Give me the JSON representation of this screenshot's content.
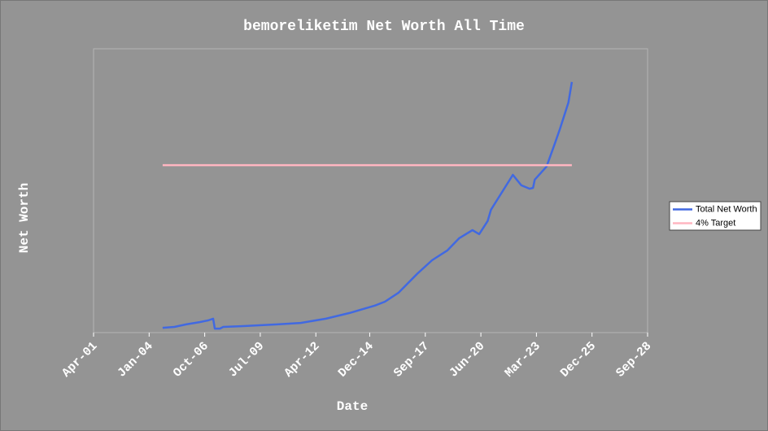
{
  "chart_data": {
    "type": "line",
    "title": "bemoreliketim Net Worth All Time",
    "xlabel": "Date",
    "ylabel": "Net Worth",
    "xlim": [
      "2001-04",
      "2028-09"
    ],
    "xticks": [
      {
        "value": "2001-04",
        "label": "Apr-01"
      },
      {
        "value": "2004-01",
        "label": "Jan-04"
      },
      {
        "value": "2006-10",
        "label": "Oct-06"
      },
      {
        "value": "2009-07",
        "label": "Jul-09"
      },
      {
        "value": "2012-04",
        "label": "Apr-12"
      },
      {
        "value": "2014-12",
        "label": "Dec-14"
      },
      {
        "value": "2017-09",
        "label": "Sep-17"
      },
      {
        "value": "2020-06",
        "label": "Jun-20"
      },
      {
        "value": "2023-03",
        "label": "Mar-23"
      },
      {
        "value": "2025-12",
        "label": "Dec-25"
      },
      {
        "value": "2028-09",
        "label": "Sep-28"
      }
    ],
    "ylim": [
      0,
      100
    ],
    "legend": "right",
    "series": [
      {
        "name": "Total Net Worth",
        "color": "#4169e1",
        "x": [
          "2004-09",
          "2005-04",
          "2005-11",
          "2006-07",
          "2006-12",
          "2007-03",
          "2007-04",
          "2007-07",
          "2007-09",
          "2008-09",
          "2010-05",
          "2011-07",
          "2012-10",
          "2013-12",
          "2015-03",
          "2015-09",
          "2016-05",
          "2017-04",
          "2018-01",
          "2018-10",
          "2019-05",
          "2020-01",
          "2020-05",
          "2020-10",
          "2020-12",
          "2022-01",
          "2022-06",
          "2022-11",
          "2023-01",
          "2023-02",
          "2023-09",
          "2024-02",
          "2024-05",
          "2024-10",
          "2024-12"
        ],
        "values": [
          1.7,
          2.0,
          2.9,
          3.7,
          4.3,
          4.9,
          1.4,
          1.4,
          2.0,
          2.3,
          2.9,
          3.4,
          4.9,
          6.9,
          9.5,
          10.9,
          14.0,
          20.6,
          25.5,
          28.9,
          33.2,
          36.1,
          34.7,
          39.3,
          43.3,
          55.6,
          51.9,
          50.7,
          51.0,
          53.9,
          58.5,
          66.8,
          71.9,
          81.1,
          88.3
        ]
      },
      {
        "name": "4% Target",
        "color": "#ffb6c1",
        "x": [
          "2004-09",
          "2024-12"
        ],
        "values": [
          59,
          59
        ]
      }
    ]
  }
}
